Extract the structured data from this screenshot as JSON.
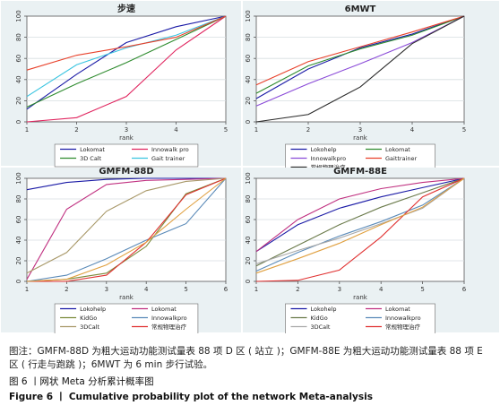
{
  "chart_data": [
    {
      "type": "line",
      "title": "步速",
      "xlabel": "rank",
      "ylabel": "",
      "x": [
        1,
        2,
        3,
        4,
        5
      ],
      "xlim": [
        1,
        5
      ],
      "ylim": [
        0,
        100
      ],
      "yticks": [
        0,
        20,
        40,
        60,
        80,
        100
      ],
      "grid": true,
      "legend_position": "bottom",
      "series": [
        {
          "name": "Lokomat",
          "color": "#1a1aa6",
          "values": [
            12,
            45,
            75,
            90,
            100
          ]
        },
        {
          "name": "Innowalk pro",
          "color": "#e0245e",
          "values": [
            0,
            4,
            24,
            68,
            100
          ]
        },
        {
          "name": "3D Calt",
          "color": "#2e8b2e",
          "values": [
            14,
            36,
            56,
            78,
            100
          ]
        },
        {
          "name": "Gait trainer",
          "color": "#38c4e0",
          "values": [
            24,
            54,
            70,
            82,
            100
          ]
        },
        {
          "name": "",
          "color": "#e8402a",
          "values": [
            49,
            63,
            71,
            80,
            100
          ]
        }
      ]
    },
    {
      "type": "line",
      "title": "6MWT",
      "xlabel": "rank",
      "ylabel": "",
      "x": [
        1,
        2,
        3,
        4,
        5
      ],
      "xlim": [
        1,
        5
      ],
      "ylim": [
        0,
        100
      ],
      "yticks": [
        0,
        20,
        40,
        60,
        80,
        100
      ],
      "grid": true,
      "legend_position": "bottom",
      "series": [
        {
          "name": "Lokohelp",
          "color": "#1a1aa6",
          "values": [
            22,
            50,
            70,
            83,
            100
          ]
        },
        {
          "name": "Lokomat",
          "color": "#2e8b2e",
          "values": [
            27,
            53,
            69,
            82,
            100
          ]
        },
        {
          "name": "Innowalkpro",
          "color": "#8a4ad8",
          "values": [
            15,
            36,
            55,
            75,
            100
          ]
        },
        {
          "name": "Gaittrainer",
          "color": "#e8402a",
          "values": [
            35,
            57,
            71,
            85,
            100
          ]
        },
        {
          "name": "常规物理治疗",
          "color": "#2a2a2a",
          "values": [
            0,
            7,
            33,
            74,
            100
          ]
        }
      ]
    },
    {
      "type": "line",
      "title": "GMFM-88D",
      "xlabel": "rank",
      "ylabel": "",
      "x": [
        1,
        2,
        3,
        4,
        5,
        6
      ],
      "xlim": [
        1,
        6
      ],
      "ylim": [
        0,
        100
      ],
      "yticks": [
        0,
        20,
        40,
        60,
        80,
        100
      ],
      "grid": true,
      "legend_position": "bottom",
      "series": [
        {
          "name": "Lokohelp",
          "color": "#1a1aa6",
          "values": [
            89,
            96,
            99,
            100,
            100,
            100
          ]
        },
        {
          "name": "Lokomat",
          "color": "#c03080",
          "values": [
            2,
            70,
            94,
            98,
            99,
            100
          ]
        },
        {
          "name": "KidGo",
          "color": "#7a8a3a",
          "values": [
            0,
            2,
            8,
            34,
            85,
            100
          ]
        },
        {
          "name": "Innowalkpro",
          "color": "#5a8ab8",
          "values": [
            0,
            6,
            22,
            40,
            56,
            100
          ]
        },
        {
          "name": "3DCalt",
          "color": "#a89868",
          "values": [
            8,
            28,
            68,
            88,
            97,
            100
          ]
        },
        {
          "name": "常规物理治疗",
          "color": "#e03030",
          "values": [
            0,
            0,
            6,
            38,
            84,
            100
          ]
        },
        {
          "name": "",
          "color": "#e0a040",
          "values": [
            0,
            2,
            16,
            38,
            70,
            100
          ]
        }
      ]
    },
    {
      "type": "line",
      "title": "GMFM-88E",
      "xlabel": "rank",
      "ylabel": "",
      "x": [
        1,
        2,
        3,
        4,
        5,
        6
      ],
      "xlim": [
        1,
        6
      ],
      "ylim": [
        0,
        100
      ],
      "yticks": [
        0,
        20,
        40,
        60,
        80,
        100
      ],
      "grid": true,
      "legend_position": "bottom",
      "series": [
        {
          "name": "Lokohelp",
          "color": "#1a1aa6",
          "values": [
            29,
            55,
            71,
            82,
            91,
            100
          ]
        },
        {
          "name": "Lokomat",
          "color": "#c03080",
          "values": [
            29,
            60,
            80,
            90,
            96,
            100
          ]
        },
        {
          "name": "KidGo",
          "color": "#6a7a4a",
          "values": [
            15,
            35,
            55,
            72,
            86,
            100
          ]
        },
        {
          "name": "Innowalkpro",
          "color": "#5a8ab8",
          "values": [
            10,
            28,
            44,
            58,
            74,
            100
          ]
        },
        {
          "name": "3DCalt",
          "color": "#a8a8a8",
          "values": [
            17,
            30,
            42,
            56,
            71,
            100
          ]
        },
        {
          "name": "常规物理治疗",
          "color": "#e03030",
          "values": [
            0,
            1,
            11,
            43,
            82,
            100
          ]
        },
        {
          "name": "",
          "color": "#e0a040",
          "values": [
            8,
            22,
            37,
            55,
            72,
            100
          ]
        }
      ]
    }
  ],
  "caption": {
    "note": "图注：GMFM-88D 为粗大运动功能测试量表 88 项 D 区 ( 站立 )；GMFM-88E 为粗大运动功能测试量表 88 项 E 区 ( 行走与跑跳 )；6MWT 为 6 min 步行试验。",
    "figure_cn": "图 6 丨网状 Meta 分析累计概率图",
    "figure_en": "Figure 6 丨 Cumulative probability plot of the network Meta-analysis"
  }
}
